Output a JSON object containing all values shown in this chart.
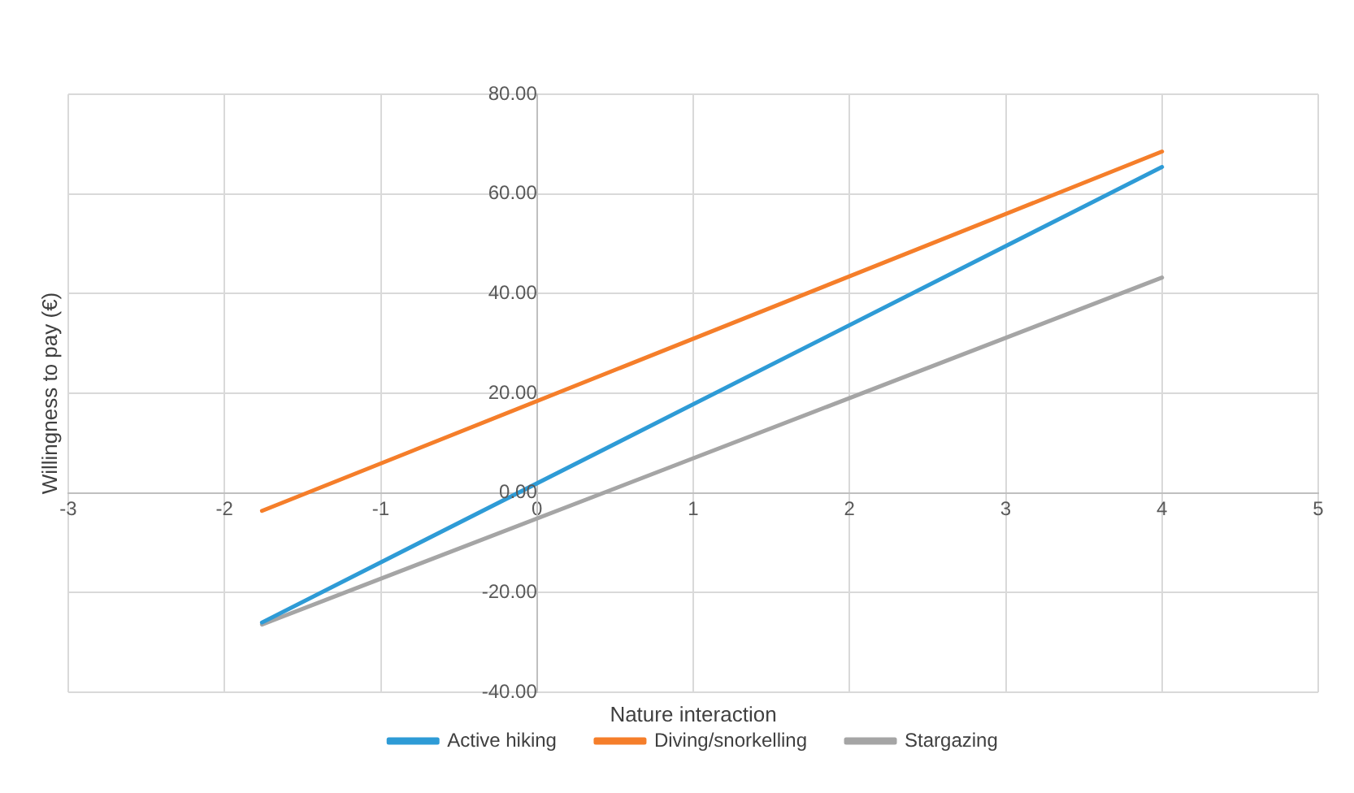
{
  "chart_data": {
    "type": "line",
    "xlabel": "Nature interaction",
    "ylabel": "Willingness to pay (€)",
    "x": [
      -1.76,
      4
    ],
    "series": [
      {
        "name": "Active hiking",
        "color": "#2e9bd6",
        "values": [
          -26,
          65.4
        ]
      },
      {
        "name": "Diving/snorkelling",
        "color": "#f57e2a",
        "values": [
          -3.6,
          68.5
        ]
      },
      {
        "name": "Stargazing",
        "color": "#a5a5a5",
        "values": [
          -26.4,
          43.2
        ]
      }
    ],
    "xlim": [
      -3,
      5
    ],
    "xticks": [
      -3,
      -2,
      -1,
      0,
      1,
      2,
      3,
      4,
      5
    ],
    "ylim": [
      -40,
      80
    ],
    "yticks": [
      {
        "value": -40,
        "label": "-40.00"
      },
      {
        "value": -20,
        "label": "-20.00"
      },
      {
        "value": 0,
        "label": "0.00"
      },
      {
        "value": 20,
        "label": "20.00"
      },
      {
        "value": 40,
        "label": "40.00"
      },
      {
        "value": 60,
        "label": "60.00"
      },
      {
        "value": 80,
        "label": "80.00"
      }
    ],
    "grid": true,
    "legend": "bottom",
    "marker": "none",
    "line_style": "solid"
  }
}
